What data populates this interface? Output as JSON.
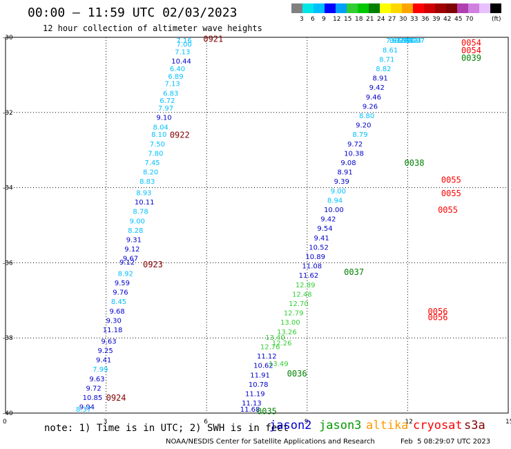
{
  "header": {
    "title": "00:00 — 11:59 UTC 02/03/2023",
    "subtitle": "12 hour collection of altimeter wave heights"
  },
  "colorbar": {
    "unit": "(ft)",
    "colors": [
      "#808080",
      "#00e5e5",
      "#00bfff",
      "#0000ff",
      "#00a0ff",
      "#32cd32",
      "#00c800",
      "#008000",
      "#ffff00",
      "#ffd700",
      "#ffa500",
      "#ff0000",
      "#d00000",
      "#a00000",
      "#800000",
      "#b040b0",
      "#d080e0",
      "#e8c0ff",
      "#000000"
    ],
    "ticks": [
      "3",
      "6",
      "9",
      "12",
      "15",
      "18",
      "21",
      "24",
      "27",
      "30",
      "33",
      "36",
      "39",
      "42",
      "45",
      "70"
    ]
  },
  "note": "note: 1) Time is in UTC; 2) SWH is in feet",
  "satellites": [
    {
      "name": "jason2",
      "color": "#0000cc"
    },
    {
      "name": "jason3",
      "color": "#009900"
    },
    {
      "name": "altika",
      "color": "#ff9900"
    },
    {
      "name": "cryosat",
      "color": "#ff0000"
    },
    {
      "name": "s3a",
      "color": "#800000"
    }
  ],
  "footer": "NOAA/NESDIS Center for Satellite Applications and Research",
  "footer_time": "Feb  5 08:29:07 UTC 2023",
  "chart_data": {
    "type": "scatter",
    "xlim": [
      0,
      15
    ],
    "ylim": [
      -40,
      -30
    ],
    "x_ticks": [
      "0",
      "3",
      "6",
      "9",
      "12",
      "15"
    ],
    "y_ticks": [
      "-30",
      "-32",
      "-34",
      "-36",
      "-38",
      "-40"
    ],
    "grid": true,
    "passes": [
      {
        "label": "0921",
        "color": "#800000",
        "pos": [
          5.9,
          -30.05
        ]
      },
      {
        "label": "0922",
        "color": "#800000",
        "pos": [
          4.9,
          -32.6
        ]
      },
      {
        "label": "0923",
        "color": "#800000",
        "pos": [
          4.1,
          -36.05
        ]
      },
      {
        "label": "0924",
        "color": "#800000",
        "pos": [
          3.0,
          -39.6
        ]
      },
      {
        "label": "0035",
        "color": "#008000",
        "pos": [
          7.5,
          -39.95
        ]
      },
      {
        "label": "0036",
        "color": "#008000",
        "pos": [
          8.4,
          -38.95
        ]
      },
      {
        "label": "0037",
        "color": "#008000",
        "pos": [
          10.1,
          -36.25
        ]
      },
      {
        "label": "0038",
        "color": "#008000",
        "pos": [
          11.9,
          -33.35
        ]
      },
      {
        "label": "0039",
        "color": "#008000",
        "pos": [
          13.6,
          -30.55
        ]
      },
      {
        "label": "0054",
        "color": "#ff0000",
        "pos": [
          13.6,
          -30.15
        ]
      },
      {
        "label": "0054",
        "color": "#ff0000",
        "pos": [
          13.6,
          -30.35
        ]
      },
      {
        "label": "0055",
        "color": "#ff0000",
        "pos": [
          13.0,
          -33.8
        ]
      },
      {
        "label": "0055",
        "color": "#ff0000",
        "pos": [
          13.0,
          -34.15
        ]
      },
      {
        "label": "0055",
        "color": "#ff0000",
        "pos": [
          12.9,
          -34.6
        ]
      },
      {
        "label": "0056",
        "color": "#ff0000",
        "pos": [
          12.6,
          -37.3
        ]
      },
      {
        "label": "0056",
        "color": "#ff0000",
        "pos": [
          12.6,
          -37.45
        ]
      }
    ],
    "series": [
      {
        "name": "s3a",
        "points": [
          [
            "7.16",
            5.1,
            -30.05,
            "#00bfff"
          ],
          [
            "7.00",
            5.1,
            -30.25,
            "#00bfff"
          ],
          [
            "7.13",
            5.05,
            -30.45,
            "#00bfff"
          ],
          [
            "10.44",
            4.95,
            -30.7,
            "#0000cc"
          ],
          [
            "6.40",
            4.9,
            -30.9,
            "#00bfff"
          ],
          [
            "6.89",
            4.85,
            -31.1,
            "#00bfff"
          ],
          [
            "7.13",
            4.75,
            -31.3,
            "#00bfff"
          ],
          [
            "6.83",
            4.7,
            -31.55,
            "#00bfff"
          ],
          [
            "6.72",
            4.6,
            -31.75,
            "#00bfff"
          ],
          [
            "7.97",
            4.55,
            -31.95,
            "#00bfff"
          ],
          [
            "9.10",
            4.5,
            -32.2,
            "#0000cc"
          ],
          [
            "8.04",
            4.4,
            -32.45,
            "#00bfff"
          ],
          [
            "8.10",
            4.35,
            -32.65,
            "#00bfff"
          ],
          [
            "7.50",
            4.3,
            -32.9,
            "#00bfff"
          ],
          [
            "7.80",
            4.25,
            -33.15,
            "#00bfff"
          ],
          [
            "7.45",
            4.15,
            -33.4,
            "#00bfff"
          ],
          [
            "8.20",
            4.1,
            -33.65,
            "#00bfff"
          ],
          [
            "8.83",
            4.0,
            -33.9,
            "#00bfff"
          ],
          [
            "8.93",
            3.9,
            -34.2,
            "#00bfff"
          ],
          [
            "10.11",
            3.85,
            -34.45,
            "#0000cc"
          ],
          [
            "8.78",
            3.8,
            -34.7,
            "#00bfff"
          ],
          [
            "9.00",
            3.7,
            -34.95,
            "#00bfff"
          ],
          [
            "8.28",
            3.65,
            -35.2,
            "#00bfff"
          ],
          [
            "9.31",
            3.6,
            -35.45,
            "#0000cc"
          ],
          [
            "9.12",
            3.55,
            -35.7,
            "#0000cc"
          ],
          [
            "9.67",
            3.5,
            -35.95,
            "#0000cc"
          ],
          [
            "9.12",
            3.4,
            -36.05,
            "#0000cc"
          ],
          [
            "8.92",
            3.35,
            -36.35,
            "#00bfff"
          ],
          [
            "9.59",
            3.25,
            -36.6,
            "#0000cc"
          ],
          [
            "9.76",
            3.2,
            -36.85,
            "#0000cc"
          ],
          [
            "8.45",
            3.15,
            -37.1,
            "#00bfff"
          ],
          [
            "9.68",
            3.1,
            -37.35,
            "#0000cc"
          ],
          [
            "9.30",
            3.0,
            -37.6,
            "#0000cc"
          ],
          [
            "11.18",
            2.9,
            -37.85,
            "#0000cc"
          ],
          [
            "9.63",
            2.85,
            -38.15,
            "#0000cc"
          ],
          [
            "9.25",
            2.75,
            -38.4,
            "#0000cc"
          ],
          [
            "9.41",
            2.7,
            -38.65,
            "#0000cc"
          ],
          [
            "7.99",
            2.6,
            -38.9,
            "#00bfff"
          ],
          [
            "9.63",
            2.5,
            -39.15,
            "#0000cc"
          ],
          [
            "9.72",
            2.4,
            -39.4,
            "#0000cc"
          ],
          [
            "10.85",
            2.3,
            -39.65,
            "#0000cc"
          ],
          [
            "9.94",
            2.2,
            -39.9,
            "#0000cc"
          ],
          [
            "8.37",
            2.1,
            -40.15,
            "#00bfff"
          ]
        ]
      },
      {
        "name": "jason3",
        "points": [
          [
            "11.68",
            7.0,
            -40.0,
            "#0000cc"
          ],
          [
            "11.13",
            7.05,
            -39.8,
            "#0000cc"
          ],
          [
            "11.19",
            7.15,
            -39.55,
            "#0000cc"
          ],
          [
            "10.78",
            7.25,
            -39.3,
            "#0000cc"
          ],
          [
            "11.91",
            7.3,
            -39.05,
            "#0000cc"
          ],
          [
            "10.62",
            7.4,
            -38.8,
            "#0000cc"
          ],
          [
            "11.12",
            7.5,
            -38.55,
            "#0000cc"
          ],
          [
            "12.76",
            7.6,
            -38.3,
            "#32cd32"
          ],
          [
            "13.40",
            7.75,
            -38.05,
            "#32cd32"
          ],
          [
            "13.49",
            7.85,
            -38.75,
            "#32cd32"
          ],
          [
            "12.26",
            7.95,
            -38.2,
            "#32cd32"
          ],
          [
            "13.26",
            8.1,
            -37.9,
            "#32cd32"
          ],
          [
            "13.00",
            8.2,
            -37.65,
            "#32cd32"
          ],
          [
            "12.79",
            8.3,
            -37.4,
            "#32cd32"
          ],
          [
            "12.70",
            8.45,
            -37.15,
            "#32cd32"
          ],
          [
            "12.48",
            8.55,
            -36.9,
            "#32cd32"
          ],
          [
            "12.89",
            8.65,
            -36.65,
            "#32cd32"
          ],
          [
            "11.62",
            8.75,
            -36.4,
            "#0000cc"
          ],
          [
            "11.08",
            8.85,
            -36.15,
            "#0000cc"
          ],
          [
            "10.89",
            8.95,
            -35.9,
            "#0000cc"
          ],
          [
            "10.52",
            9.05,
            -35.65,
            "#0000cc"
          ],
          [
            "9.41",
            9.2,
            -35.4,
            "#0000cc"
          ],
          [
            "9.54",
            9.3,
            -35.15,
            "#0000cc"
          ],
          [
            "9.42",
            9.4,
            -34.9,
            "#0000cc"
          ],
          [
            "10.00",
            9.5,
            -34.65,
            "#0000cc"
          ],
          [
            "8.94",
            9.6,
            -34.4,
            "#00bfff"
          ],
          [
            "9.00",
            9.7,
            -34.15,
            "#00bfff"
          ],
          [
            "9.39",
            9.8,
            -33.9,
            "#0000cc"
          ],
          [
            "8.91",
            9.9,
            -33.65,
            "#0000cc"
          ],
          [
            "9.08",
            10.0,
            -33.4,
            "#0000cc"
          ],
          [
            "10.38",
            10.1,
            -33.15,
            "#0000cc"
          ],
          [
            "9.72",
            10.2,
            -32.9,
            "#0000cc"
          ],
          [
            "8.79",
            10.35,
            -32.65,
            "#00bfff"
          ],
          [
            "9.20",
            10.45,
            -32.4,
            "#0000cc"
          ],
          [
            "8.80",
            10.55,
            -32.15,
            "#00bfff"
          ],
          [
            "9.26",
            10.65,
            -31.9,
            "#0000cc"
          ],
          [
            "9.46",
            10.75,
            -31.65,
            "#0000cc"
          ],
          [
            "9.42",
            10.85,
            -31.4,
            "#0000cc"
          ],
          [
            "8.91",
            10.95,
            -31.15,
            "#0000cc"
          ],
          [
            "8.82",
            11.05,
            -30.9,
            "#00bfff"
          ],
          [
            "8.71",
            11.15,
            -30.65,
            "#00bfff"
          ],
          [
            "8.61",
            11.25,
            -30.4,
            "#00bfff"
          ],
          [
            "7.96",
            11.35,
            -30.15,
            "#00bfff"
          ],
          [
            "8.31",
            11.45,
            -29.9,
            "#00bfff"
          ],
          [
            "8.30",
            11.55,
            -29.65,
            "#00bfff"
          ],
          [
            "7.99",
            11.65,
            -29.4,
            "#00bfff"
          ],
          [
            "7.40",
            11.75,
            -29.15,
            "#00bfff"
          ],
          [
            "7.52",
            11.85,
            -28.9,
            "#00bfff"
          ],
          [
            "7.74",
            11.95,
            -28.65,
            "#00bfff"
          ],
          [
            "7.07",
            12.05,
            -28.4,
            "#00bfff"
          ]
        ]
      }
    ]
  }
}
